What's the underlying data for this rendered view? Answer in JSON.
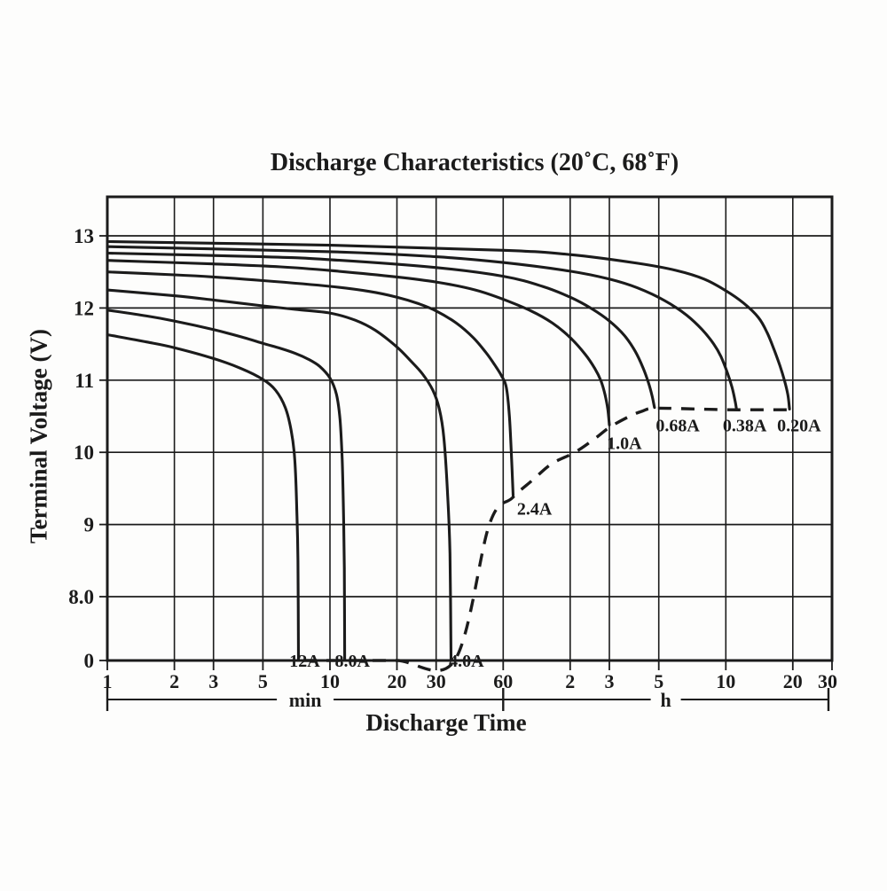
{
  "page": {
    "background": "#fdfdfc",
    "ink": "#1b1b1b"
  },
  "chart": {
    "title": "Discharge Characteristics (20˚C, 68˚F)",
    "y_axis_title": "Terminal Voltage (V)",
    "x_axis_title": "Discharge Time"
  },
  "chart_data": {
    "type": "line",
    "title": "Discharge Characteristics (20˚C, 68˚F)",
    "xlabel": "Discharge Time",
    "ylabel": "Terminal Voltage (V)",
    "x_scale": "log-time-minutes",
    "x_range_minutes": [
      1,
      1800
    ],
    "y_range_volts": [
      8,
      13.55
    ],
    "y_axis_break_to_zero": true,
    "grid": true,
    "legend_position": "inline-labels",
    "x_ticks": [
      {
        "label": "1",
        "t": 1
      },
      {
        "label": "2",
        "t": 2
      },
      {
        "label": "3",
        "t": 3
      },
      {
        "label": "5",
        "t": 5
      },
      {
        "label": "10",
        "t": 10
      },
      {
        "label": "20",
        "t": 20
      },
      {
        "label": "30",
        "t": 30
      },
      {
        "label": "60",
        "t": 60
      },
      {
        "label": "2",
        "t": 120
      },
      {
        "label": "3",
        "t": 180
      },
      {
        "label": "5",
        "t": 300
      },
      {
        "label": "10",
        "t": 600
      },
      {
        "label": "20",
        "t": 1200
      },
      {
        "label": "30",
        "t": 1800
      }
    ],
    "x_unit_segments": [
      {
        "label": "min",
        "from_minutes": 1,
        "to_minutes": 60
      },
      {
        "label": "h",
        "from_minutes": 60,
        "to_minutes": 1800
      }
    ],
    "y_ticks": [
      {
        "label": "13",
        "v": 13
      },
      {
        "label": "12",
        "v": 12
      },
      {
        "label": "11",
        "v": 11
      },
      {
        "label": "10",
        "v": 10
      },
      {
        "label": "9",
        "v": 9
      },
      {
        "label": "8.0",
        "v": 8
      },
      {
        "label": "0",
        "v": 0
      }
    ],
    "series": [
      {
        "name": "12A",
        "label_at": {
          "t": 7.7,
          "v": 7.72
        },
        "points": [
          [
            1,
            11.63
          ],
          [
            1.5,
            11.53
          ],
          [
            2,
            11.45
          ],
          [
            3,
            11.3
          ],
          [
            4,
            11.16
          ],
          [
            5,
            11.01
          ],
          [
            5.7,
            10.86
          ],
          [
            6.3,
            10.62
          ],
          [
            6.7,
            10.3
          ],
          [
            6.95,
            9.9
          ],
          [
            7.1,
            9.2
          ],
          [
            7.18,
            8.5
          ],
          [
            7.22,
            7.9
          ]
        ]
      },
      {
        "name": "8.0A",
        "label_at": {
          "t": 12.6,
          "v": 7.72
        },
        "points": [
          [
            1,
            11.97
          ],
          [
            1.5,
            11.89
          ],
          [
            2,
            11.82
          ],
          [
            3,
            11.7
          ],
          [
            4,
            11.6
          ],
          [
            5,
            11.51
          ],
          [
            6,
            11.44
          ],
          [
            7,
            11.37
          ],
          [
            8,
            11.29
          ],
          [
            9,
            11.19
          ],
          [
            10,
            11.03
          ],
          [
            10.7,
            10.8
          ],
          [
            11.1,
            10.45
          ],
          [
            11.35,
            9.9
          ],
          [
            11.5,
            9.2
          ],
          [
            11.6,
            8.4
          ],
          [
            11.65,
            7.9
          ]
        ]
      },
      {
        "name": "4.0A",
        "label_at": {
          "t": 41,
          "v": 7.72
        },
        "points": [
          [
            1,
            12.25
          ],
          [
            2,
            12.17
          ],
          [
            3,
            12.11
          ],
          [
            5,
            12.03
          ],
          [
            7,
            11.98
          ],
          [
            10,
            11.93
          ],
          [
            13,
            11.83
          ],
          [
            16,
            11.69
          ],
          [
            20,
            11.46
          ],
          [
            23,
            11.27
          ],
          [
            26,
            11.09
          ],
          [
            29,
            10.86
          ],
          [
            31,
            10.6
          ],
          [
            32.5,
            10.2
          ],
          [
            33.8,
            9.4
          ],
          [
            34.6,
            8.6
          ],
          [
            35,
            7.9
          ]
        ]
      },
      {
        "name": "2.4A",
        "label_at": {
          "t": 83,
          "v": 9.22
        },
        "points": [
          [
            1,
            12.5
          ],
          [
            2,
            12.46
          ],
          [
            3,
            12.43
          ],
          [
            5,
            12.38
          ],
          [
            10,
            12.3
          ],
          [
            15,
            12.23
          ],
          [
            20,
            12.15
          ],
          [
            25,
            12.06
          ],
          [
            30,
            11.96
          ],
          [
            37,
            11.79
          ],
          [
            44,
            11.59
          ],
          [
            50,
            11.39
          ],
          [
            55,
            11.21
          ],
          [
            59,
            11.06
          ],
          [
            62,
            10.9
          ],
          [
            64,
            10.5
          ],
          [
            65.5,
            9.9
          ],
          [
            66.5,
            9.4
          ]
        ]
      },
      {
        "name": "1.0A",
        "label_at": {
          "t": 210,
          "v": 10.13
        },
        "points": [
          [
            1,
            12.66
          ],
          [
            3,
            12.61
          ],
          [
            6,
            12.57
          ],
          [
            10,
            12.52
          ],
          [
            20,
            12.43
          ],
          [
            30,
            12.36
          ],
          [
            45,
            12.25
          ],
          [
            60,
            12.12
          ],
          [
            80,
            11.96
          ],
          [
            100,
            11.79
          ],
          [
            120,
            11.59
          ],
          [
            140,
            11.36
          ],
          [
            155,
            11.16
          ],
          [
            165,
            10.99
          ],
          [
            172,
            10.8
          ],
          [
            177,
            10.6
          ],
          [
            180,
            10.38
          ]
        ]
      },
      {
        "name": "0.68A",
        "label_at": {
          "t": 365,
          "v": 10.38
        },
        "points": [
          [
            1,
            12.76
          ],
          [
            5,
            12.71
          ],
          [
            10,
            12.67
          ],
          [
            30,
            12.56
          ],
          [
            60,
            12.44
          ],
          [
            90,
            12.3
          ],
          [
            120,
            12.15
          ],
          [
            150,
            11.99
          ],
          [
            180,
            11.82
          ],
          [
            210,
            11.62
          ],
          [
            235,
            11.4
          ],
          [
            255,
            11.17
          ],
          [
            270,
            10.96
          ],
          [
            280,
            10.78
          ],
          [
            287,
            10.62
          ]
        ]
      },
      {
        "name": "0.38A",
        "label_at": {
          "t": 730,
          "v": 10.38
        },
        "points": [
          [
            1,
            12.85
          ],
          [
            10,
            12.78
          ],
          [
            30,
            12.71
          ],
          [
            60,
            12.63
          ],
          [
            120,
            12.51
          ],
          [
            180,
            12.4
          ],
          [
            240,
            12.28
          ],
          [
            320,
            12.1
          ],
          [
            400,
            11.9
          ],
          [
            470,
            11.7
          ],
          [
            530,
            11.5
          ],
          [
            570,
            11.33
          ],
          [
            610,
            11.1
          ],
          [
            640,
            10.9
          ],
          [
            660,
            10.72
          ],
          [
            670,
            10.6
          ]
        ]
      },
      {
        "name": "0.20A",
        "label_at": {
          "t": 1280,
          "v": 10.38
        },
        "points": [
          [
            1,
            12.92
          ],
          [
            10,
            12.87
          ],
          [
            60,
            12.8
          ],
          [
            120,
            12.74
          ],
          [
            240,
            12.62
          ],
          [
            360,
            12.52
          ],
          [
            480,
            12.4
          ],
          [
            600,
            12.24
          ],
          [
            720,
            12.07
          ],
          [
            840,
            11.87
          ],
          [
            920,
            11.66
          ],
          [
            990,
            11.42
          ],
          [
            1050,
            11.2
          ],
          [
            1100,
            11.0
          ],
          [
            1140,
            10.8
          ],
          [
            1160,
            10.6
          ]
        ]
      }
    ],
    "cutoff_line": {
      "style": "dashed",
      "points": [
        [
          7.6,
          7.88
        ],
        [
          12,
          7.88
        ],
        [
          20,
          7.88
        ],
        [
          36.3,
          7.88
        ],
        [
          52,
          9.0
        ],
        [
          66,
          9.37
        ],
        [
          81,
          9.61
        ],
        [
          99,
          9.84
        ],
        [
          126,
          10.0
        ],
        [
          155,
          10.19
        ],
        [
          181,
          10.35
        ],
        [
          222,
          10.5
        ],
        [
          253,
          10.57
        ],
        [
          287,
          10.61
        ],
        [
          450,
          10.6
        ],
        [
          610,
          10.59
        ],
        [
          900,
          10.59
        ],
        [
          1155,
          10.59
        ]
      ]
    }
  }
}
